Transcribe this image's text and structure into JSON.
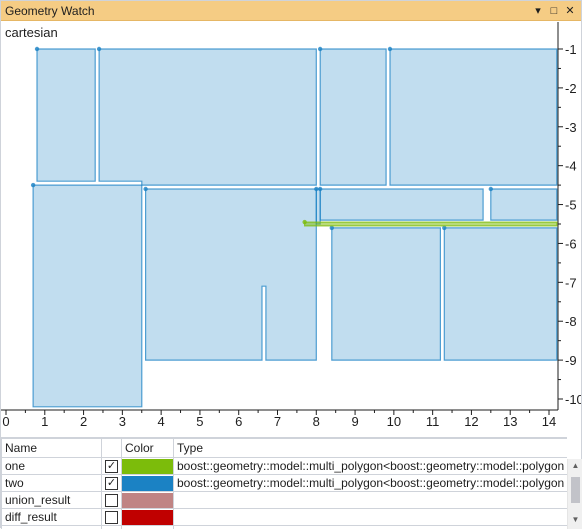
{
  "window": {
    "title": "Geometry Watch",
    "buttons": {
      "dropdown": "▾",
      "maximize": "□",
      "close": "✕"
    }
  },
  "canvas": {
    "coord_system": "cartesian"
  },
  "chart_data": {
    "type": "geometry-plot",
    "x_ticks": [
      "0",
      "1",
      "2",
      "3",
      "4",
      "5",
      "6",
      "7",
      "8",
      "9",
      "10",
      "11",
      "12",
      "13",
      "14"
    ],
    "y_ticks": [
      "-1",
      "-2",
      "-3",
      "-4",
      "-5",
      "-6",
      "-7",
      "-8",
      "-9",
      "-10"
    ],
    "xlim": [
      0,
      14.3
    ],
    "ylim": [
      -10.3,
      -0.6
    ],
    "colors": {
      "one": "#7cbc0b",
      "two": "#1b82c4"
    },
    "polygons": [
      {
        "geometry": "two",
        "points": [
          [
            0.8,
            -1
          ],
          [
            2.3,
            -1
          ],
          [
            2.3,
            -4.4
          ],
          [
            0.8,
            -4.4
          ]
        ]
      },
      {
        "geometry": "two",
        "points": [
          [
            2.4,
            -1
          ],
          [
            8.0,
            -1
          ],
          [
            8.0,
            -4.5
          ],
          [
            3.5,
            -4.5
          ],
          [
            3.5,
            -4.4
          ],
          [
            2.4,
            -4.4
          ]
        ]
      },
      {
        "geometry": "two",
        "points": [
          [
            8.1,
            -1
          ],
          [
            9.8,
            -1
          ],
          [
            9.8,
            -4.5
          ],
          [
            8.1,
            -4.5
          ]
        ]
      },
      {
        "geometry": "two",
        "points": [
          [
            9.9,
            -1
          ],
          [
            14.2,
            -1
          ],
          [
            14.2,
            -4.5
          ],
          [
            9.9,
            -4.5
          ]
        ]
      },
      {
        "geometry": "two",
        "points": [
          [
            0.7,
            -4.5
          ],
          [
            3.5,
            -4.5
          ],
          [
            3.5,
            -10.2
          ],
          [
            0.7,
            -10.2
          ]
        ]
      },
      {
        "geometry": "two",
        "points": [
          [
            3.6,
            -4.6
          ],
          [
            8.0,
            -4.6
          ],
          [
            8.0,
            -9.0
          ],
          [
            6.7,
            -9.0
          ],
          [
            6.7,
            -7.1
          ],
          [
            6.6,
            -7.1
          ],
          [
            6.6,
            -9.0
          ],
          [
            3.6,
            -9.0
          ]
        ]
      },
      {
        "geometry": "two",
        "points": [
          [
            8.0,
            -4.6
          ],
          [
            8.1,
            -4.6
          ],
          [
            8.1,
            -5.5
          ],
          [
            8.0,
            -5.5
          ]
        ]
      },
      {
        "geometry": "two",
        "points": [
          [
            8.1,
            -4.6
          ],
          [
            12.3,
            -4.6
          ],
          [
            12.3,
            -5.4
          ],
          [
            8.1,
            -5.4
          ]
        ]
      },
      {
        "geometry": "two",
        "points": [
          [
            12.5,
            -4.6
          ],
          [
            14.2,
            -4.6
          ],
          [
            14.2,
            -5.4
          ],
          [
            12.5,
            -5.4
          ]
        ]
      },
      {
        "geometry": "two",
        "points": [
          [
            8.4,
            -5.6
          ],
          [
            11.2,
            -5.6
          ],
          [
            11.2,
            -9.0
          ],
          [
            8.4,
            -9.0
          ]
        ]
      },
      {
        "geometry": "two",
        "points": [
          [
            11.3,
            -5.6
          ],
          [
            14.2,
            -5.6
          ],
          [
            14.2,
            -9.0
          ],
          [
            11.3,
            -9.0
          ]
        ]
      },
      {
        "geometry": "one",
        "points": [
          [
            7.7,
            -5.45
          ],
          [
            14.2,
            -5.45
          ],
          [
            14.2,
            -5.55
          ],
          [
            7.7,
            -5.55
          ]
        ]
      }
    ]
  },
  "grid": {
    "columns": [
      "Name",
      "",
      "Color",
      "Type"
    ],
    "rows": [
      {
        "name": "one",
        "checked": true,
        "color": "#7cbc0b",
        "type": "boost::geometry::model::multi_polygon<boost::geometry::model::polygon"
      },
      {
        "name": "two",
        "checked": true,
        "color": "#1b82c4",
        "type": "boost::geometry::model::multi_polygon<boost::geometry::model::polygon"
      },
      {
        "name": "union_result",
        "checked": false,
        "color": "#c08484",
        "type": ""
      },
      {
        "name": "diff_result",
        "checked": false,
        "color": "#c00000",
        "type": ""
      },
      {
        "name": "",
        "checked": false,
        "color": "",
        "type": ""
      }
    ]
  }
}
